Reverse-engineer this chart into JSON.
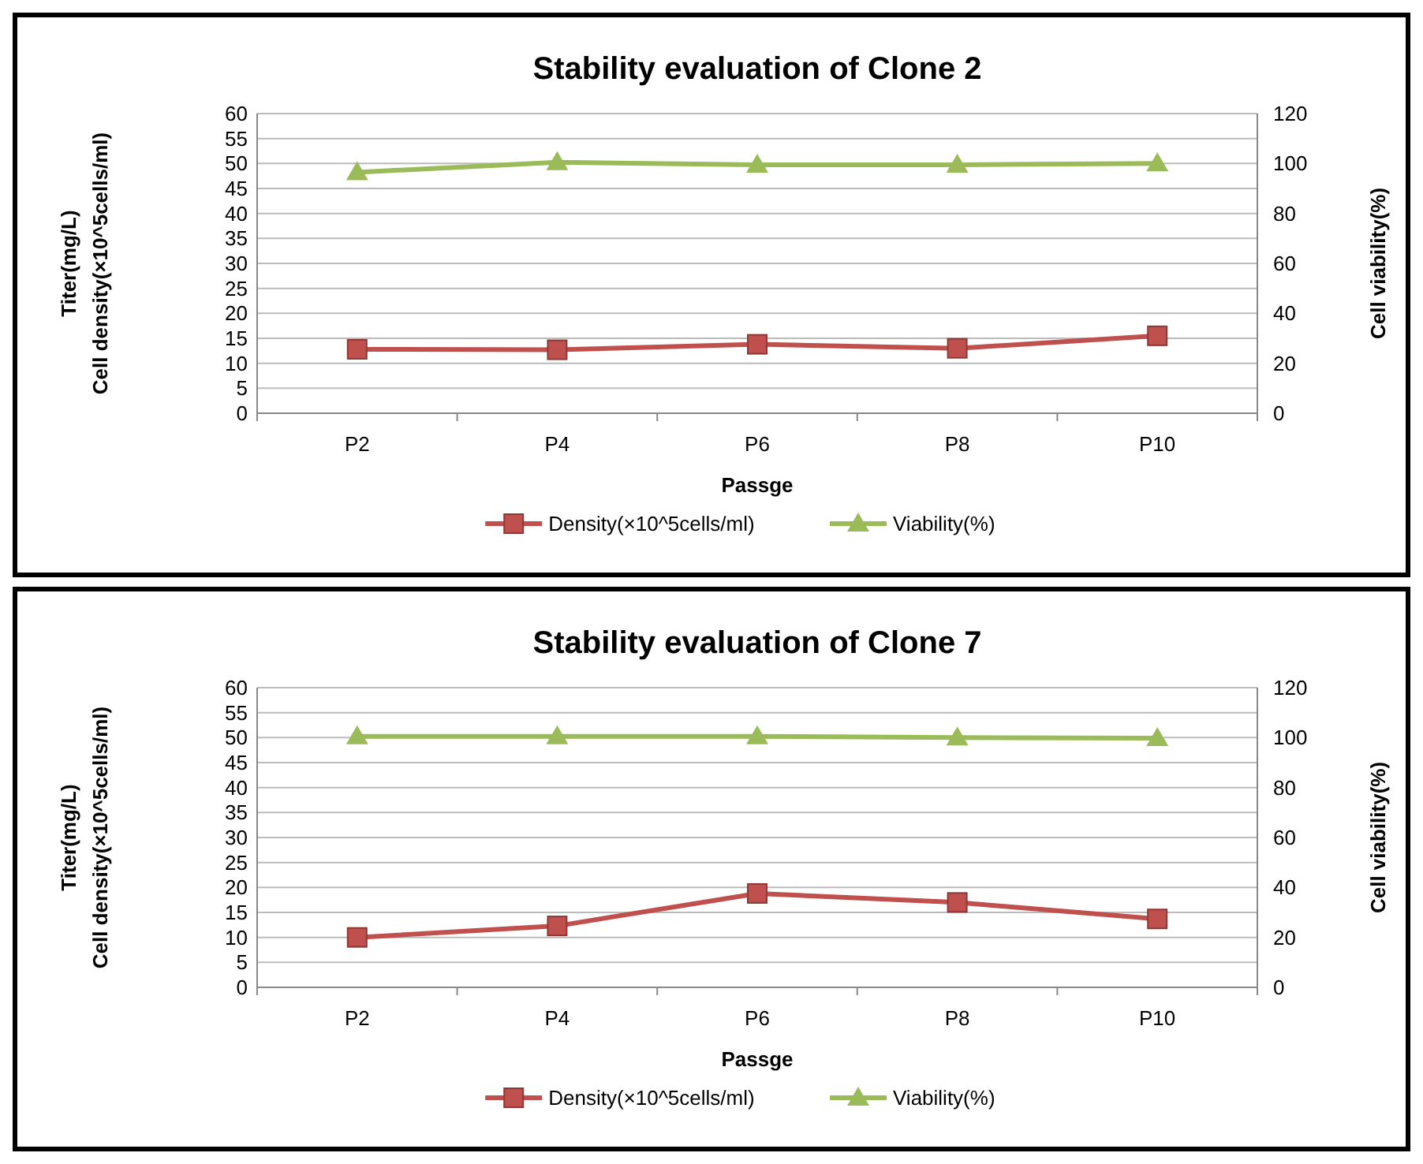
{
  "chart_data": [
    {
      "type": "line",
      "title": "Stability evaluation of Clone 2",
      "xlabel": "Passge",
      "ylabel": "Titer(mg/L)\nCell density(×10^5cells/ml)",
      "y2label": "Cell viability(%)",
      "categories": [
        "P2",
        "P4",
        "P6",
        "P8",
        "P10"
      ],
      "series": [
        {
          "name": "Density(×10^5cells/ml)",
          "color": "#c0504d",
          "marker": "square",
          "values": [
            12.8,
            12.7,
            13.8,
            13.0,
            15.5
          ]
        },
        {
          "name": "Viability(%)",
          "color": "#9bbb59",
          "marker": "triangle",
          "axis": "y2",
          "values": [
            96.5,
            100.5,
            99.5,
            99.5,
            100
          ]
        }
      ],
      "ylim": [
        0,
        60
      ],
      "yticks": [
        0,
        5,
        10,
        15,
        20,
        25,
        30,
        35,
        40,
        45,
        50,
        55,
        60
      ],
      "y2lim": [
        0,
        120
      ],
      "y2ticks": [
        0,
        20,
        40,
        60,
        80,
        100,
        120
      ],
      "grid": "y",
      "legend": "bottom"
    },
    {
      "type": "line",
      "title": "Stability evaluation of Clone 7",
      "xlabel": "Passge",
      "ylabel": "Titer(mg/L)\nCell density(×10^5cells/ml)",
      "y2label": "Cell viability(%)",
      "categories": [
        "P2",
        "P4",
        "P6",
        "P8",
        "P10"
      ],
      "series": [
        {
          "name": "Density(×10^5cells/ml)",
          "color": "#c0504d",
          "marker": "square",
          "values": [
            10,
            12.3,
            18.8,
            17,
            13.7
          ]
        },
        {
          "name": "Viability(%)",
          "color": "#9bbb59",
          "marker": "triangle",
          "axis": "y2",
          "values": [
            100.5,
            100.5,
            100.5,
            100,
            99.8
          ]
        }
      ],
      "ylim": [
        0,
        60
      ],
      "yticks": [
        0,
        5,
        10,
        15,
        20,
        25,
        30,
        35,
        40,
        45,
        50,
        55,
        60
      ],
      "y2lim": [
        0,
        120
      ],
      "y2ticks": [
        0,
        20,
        40,
        60,
        80,
        100,
        120
      ],
      "grid": "y",
      "legend": "bottom"
    }
  ]
}
